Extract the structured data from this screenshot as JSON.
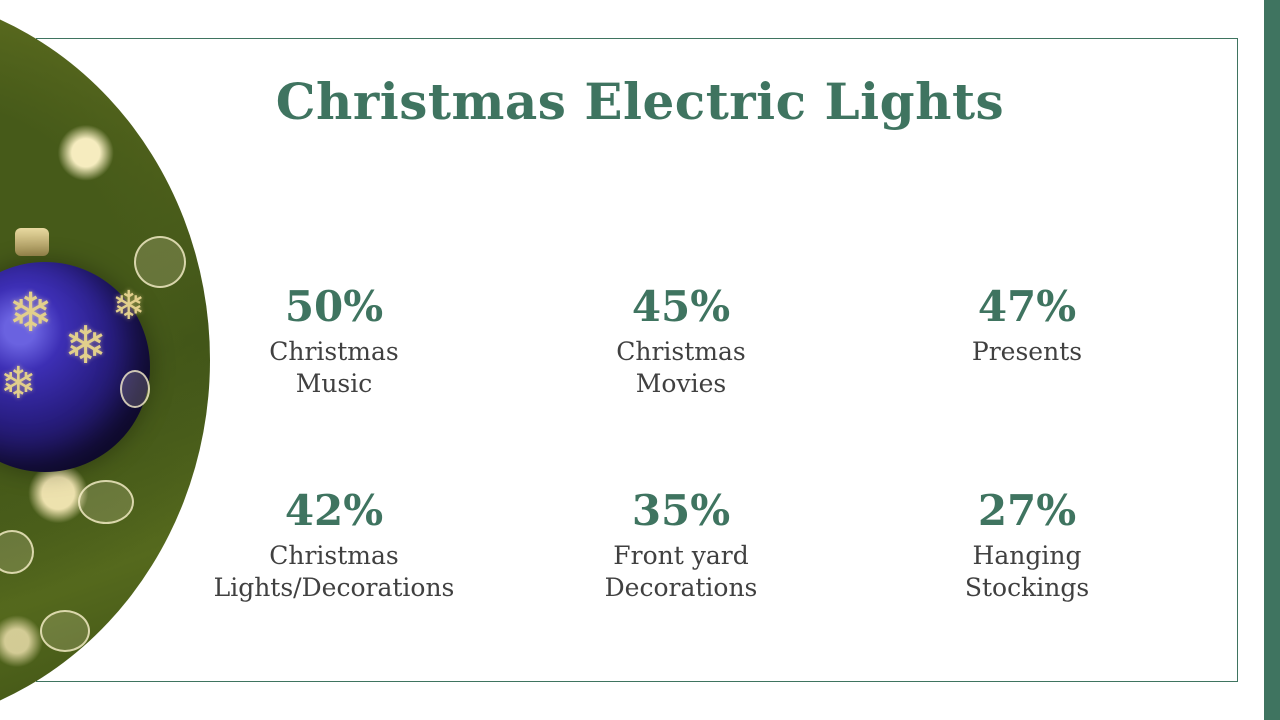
{
  "slide": {
    "title": "Christmas Electric Lights",
    "accent_color": "#3f7460",
    "image": {
      "description_icon": "christmas-ornament-photo"
    },
    "stats": [
      {
        "value": "50%",
        "label_line1": "Christmas",
        "label_line2": "Music"
      },
      {
        "value": "45%",
        "label_line1": "Christmas",
        "label_line2": "Movies"
      },
      {
        "value": "47%",
        "label_line1": "Presents",
        "label_line2": ""
      },
      {
        "value": "42%",
        "label_line1": "Christmas",
        "label_line2": "Lights/Decorations"
      },
      {
        "value": "35%",
        "label_line1": "Front yard",
        "label_line2": "Decorations"
      },
      {
        "value": "27%",
        "label_line1": "Hanging",
        "label_line2": "Stockings"
      }
    ]
  }
}
